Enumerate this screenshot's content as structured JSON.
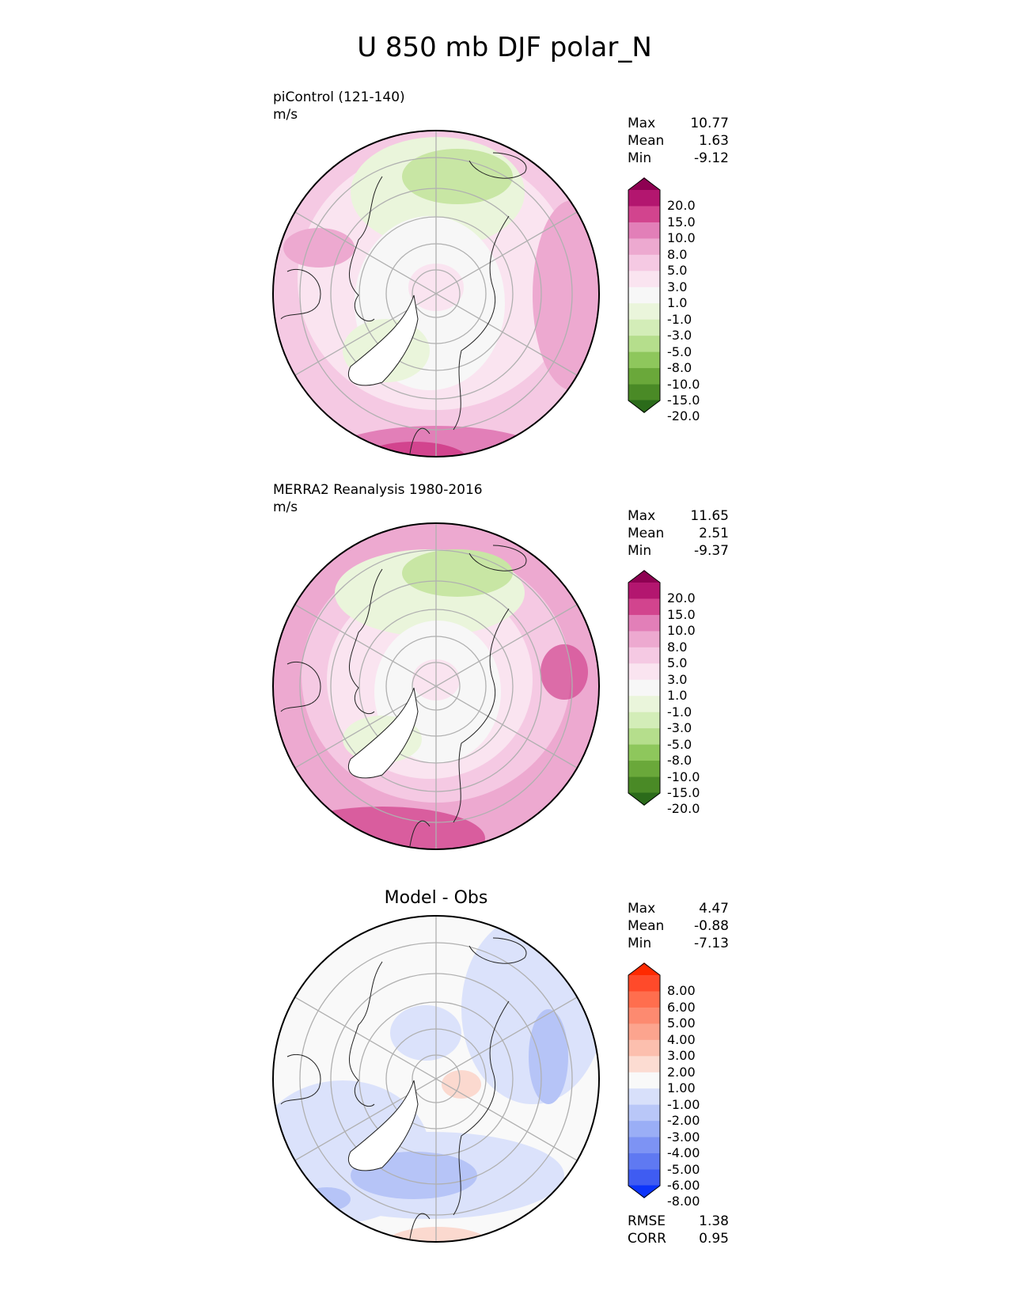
{
  "main_title": "U 850 mb DJF polar_N",
  "panels": [
    {
      "id": "model",
      "label": "piControl (121-140)",
      "units": "m/s",
      "stats": {
        "max_label": "Max",
        "max": "10.77",
        "mean_label": "Mean",
        "mean": "1.63",
        "min_label": "Min",
        "min": "-9.12"
      },
      "colorbar": {
        "levels": [
          "20.0",
          "15.0",
          "10.0",
          "8.0",
          "5.0",
          "3.0",
          "1.0",
          "-1.0",
          "-3.0",
          "-5.0",
          "-8.0",
          "-10.0",
          "-15.0",
          "-20.0"
        ],
        "colors": [
          "#8e0152",
          "#b3166f",
          "#d2448e",
          "#e27fb8",
          "#eda9d0",
          "#f5c9e3",
          "#fae4f0",
          "#f7f7f7",
          "#eaf5db",
          "#d3edb8",
          "#b5de8c",
          "#8ec75c",
          "#6aa83a",
          "#4a8a26",
          "#2b6b1a"
        ]
      }
    },
    {
      "id": "obs",
      "label": "MERRA2 Reanalysis 1980-2016",
      "units": "m/s",
      "stats": {
        "max_label": "Max",
        "max": "11.65",
        "mean_label": "Mean",
        "mean": "2.51",
        "min_label": "Min",
        "min": "-9.37"
      },
      "colorbar": {
        "levels": [
          "20.0",
          "15.0",
          "10.0",
          "8.0",
          "5.0",
          "3.0",
          "1.0",
          "-1.0",
          "-3.0",
          "-5.0",
          "-8.0",
          "-10.0",
          "-15.0",
          "-20.0"
        ],
        "colors": [
          "#8e0152",
          "#b3166f",
          "#d2448e",
          "#e27fb8",
          "#eda9d0",
          "#f5c9e3",
          "#fae4f0",
          "#f7f7f7",
          "#eaf5db",
          "#d3edb8",
          "#b5de8c",
          "#8ec75c",
          "#6aa83a",
          "#4a8a26",
          "#2b6b1a"
        ]
      }
    },
    {
      "id": "diff",
      "title": "Model - Obs",
      "stats": {
        "max_label": "Max",
        "max": "4.47",
        "mean_label": "Mean",
        "mean": "-0.88",
        "min_label": "Min",
        "min": "-7.13"
      },
      "colorbar": {
        "levels": [
          "8.00",
          "6.00",
          "5.00",
          "4.00",
          "3.00",
          "2.00",
          "1.00",
          "-1.00",
          "-2.00",
          "-3.00",
          "-4.00",
          "-5.00",
          "-6.00",
          "-8.00"
        ],
        "colors": [
          "#ff2a00",
          "#ff4a2a",
          "#ff6e4e",
          "#fd8a70",
          "#fca48e",
          "#fcbfae",
          "#fcdcd2",
          "#f9f9f9",
          "#d8e0fa",
          "#b9c7f8",
          "#9aaef6",
          "#7d93f4",
          "#5f79f2",
          "#3f5cf2",
          "#0b34fb"
        ]
      },
      "metrics": {
        "rmse_label": "RMSE",
        "rmse": "1.38",
        "corr_label": "CORR",
        "corr": "0.95"
      }
    }
  ],
  "map_colors": {
    "pink_light": "#fbe3ef",
    "pink_mid": "#f2c2dd",
    "pink_dark": "#e7a4cc",
    "magenta": "#d4569c",
    "green_light": "#e9f4d6",
    "green_mid": "#c8e6a4",
    "white": "#f7f7f7",
    "blue_light": "#dbe2fb",
    "blue_mid": "#b6c4f7",
    "red_light": "#fbd9cf"
  }
}
